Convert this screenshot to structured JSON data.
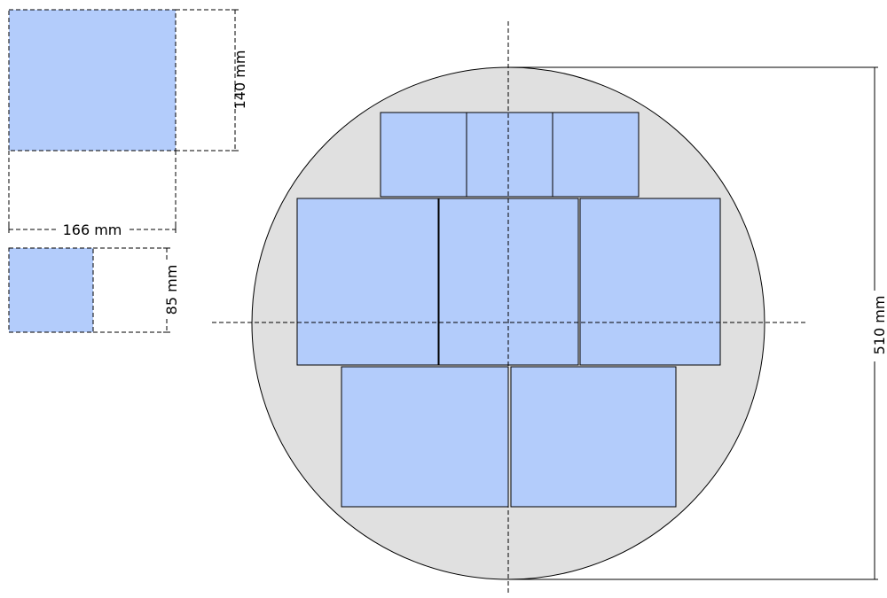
{
  "colors": {
    "tile_fill": "#b3ccfb",
    "disc_fill": "#e0e0e0",
    "line": "#000000",
    "background": "#ffffff"
  },
  "dimensions": {
    "large_sample_height": "140 mm",
    "large_sample_width": "166 mm",
    "small_sample_size": "85 mm",
    "disc_diameter": "510 mm"
  },
  "layout_description": {
    "top_row_tiles": 3,
    "middle_row_tiles": 3,
    "bottom_row_tiles": 2
  }
}
